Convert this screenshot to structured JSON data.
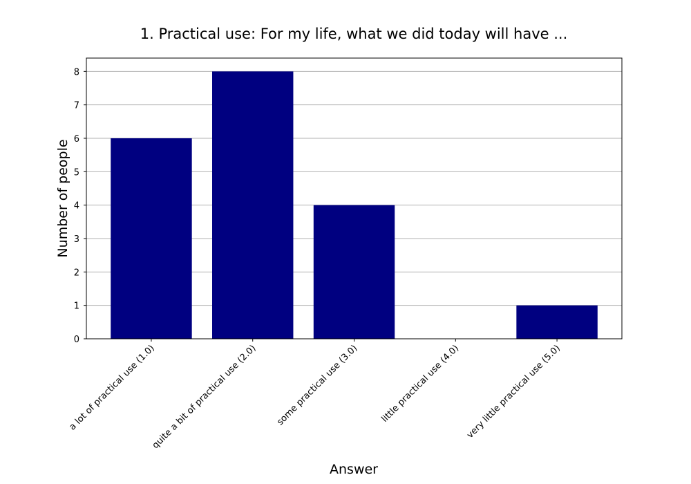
{
  "chart_data": {
    "type": "bar",
    "title": "1. Practical use: For my life, what we did today will have ...",
    "xlabel": "Answer",
    "ylabel": "Number of people",
    "categories": [
      "a lot of practical use (1.0)",
      "quite a bit of practical use (2.0)",
      "some practical use (3.0)",
      "little practical use (4.0)",
      "very little practical use (5.0)"
    ],
    "values": [
      6,
      8,
      4,
      0,
      1
    ],
    "ylim": [
      0,
      8.4
    ],
    "yticks": [
      0,
      1,
      2,
      3,
      4,
      5,
      6,
      7,
      8
    ],
    "grid": true,
    "grid_axis": "y",
    "bar_color": "#000080",
    "grid_color": "#b0b0b0"
  }
}
